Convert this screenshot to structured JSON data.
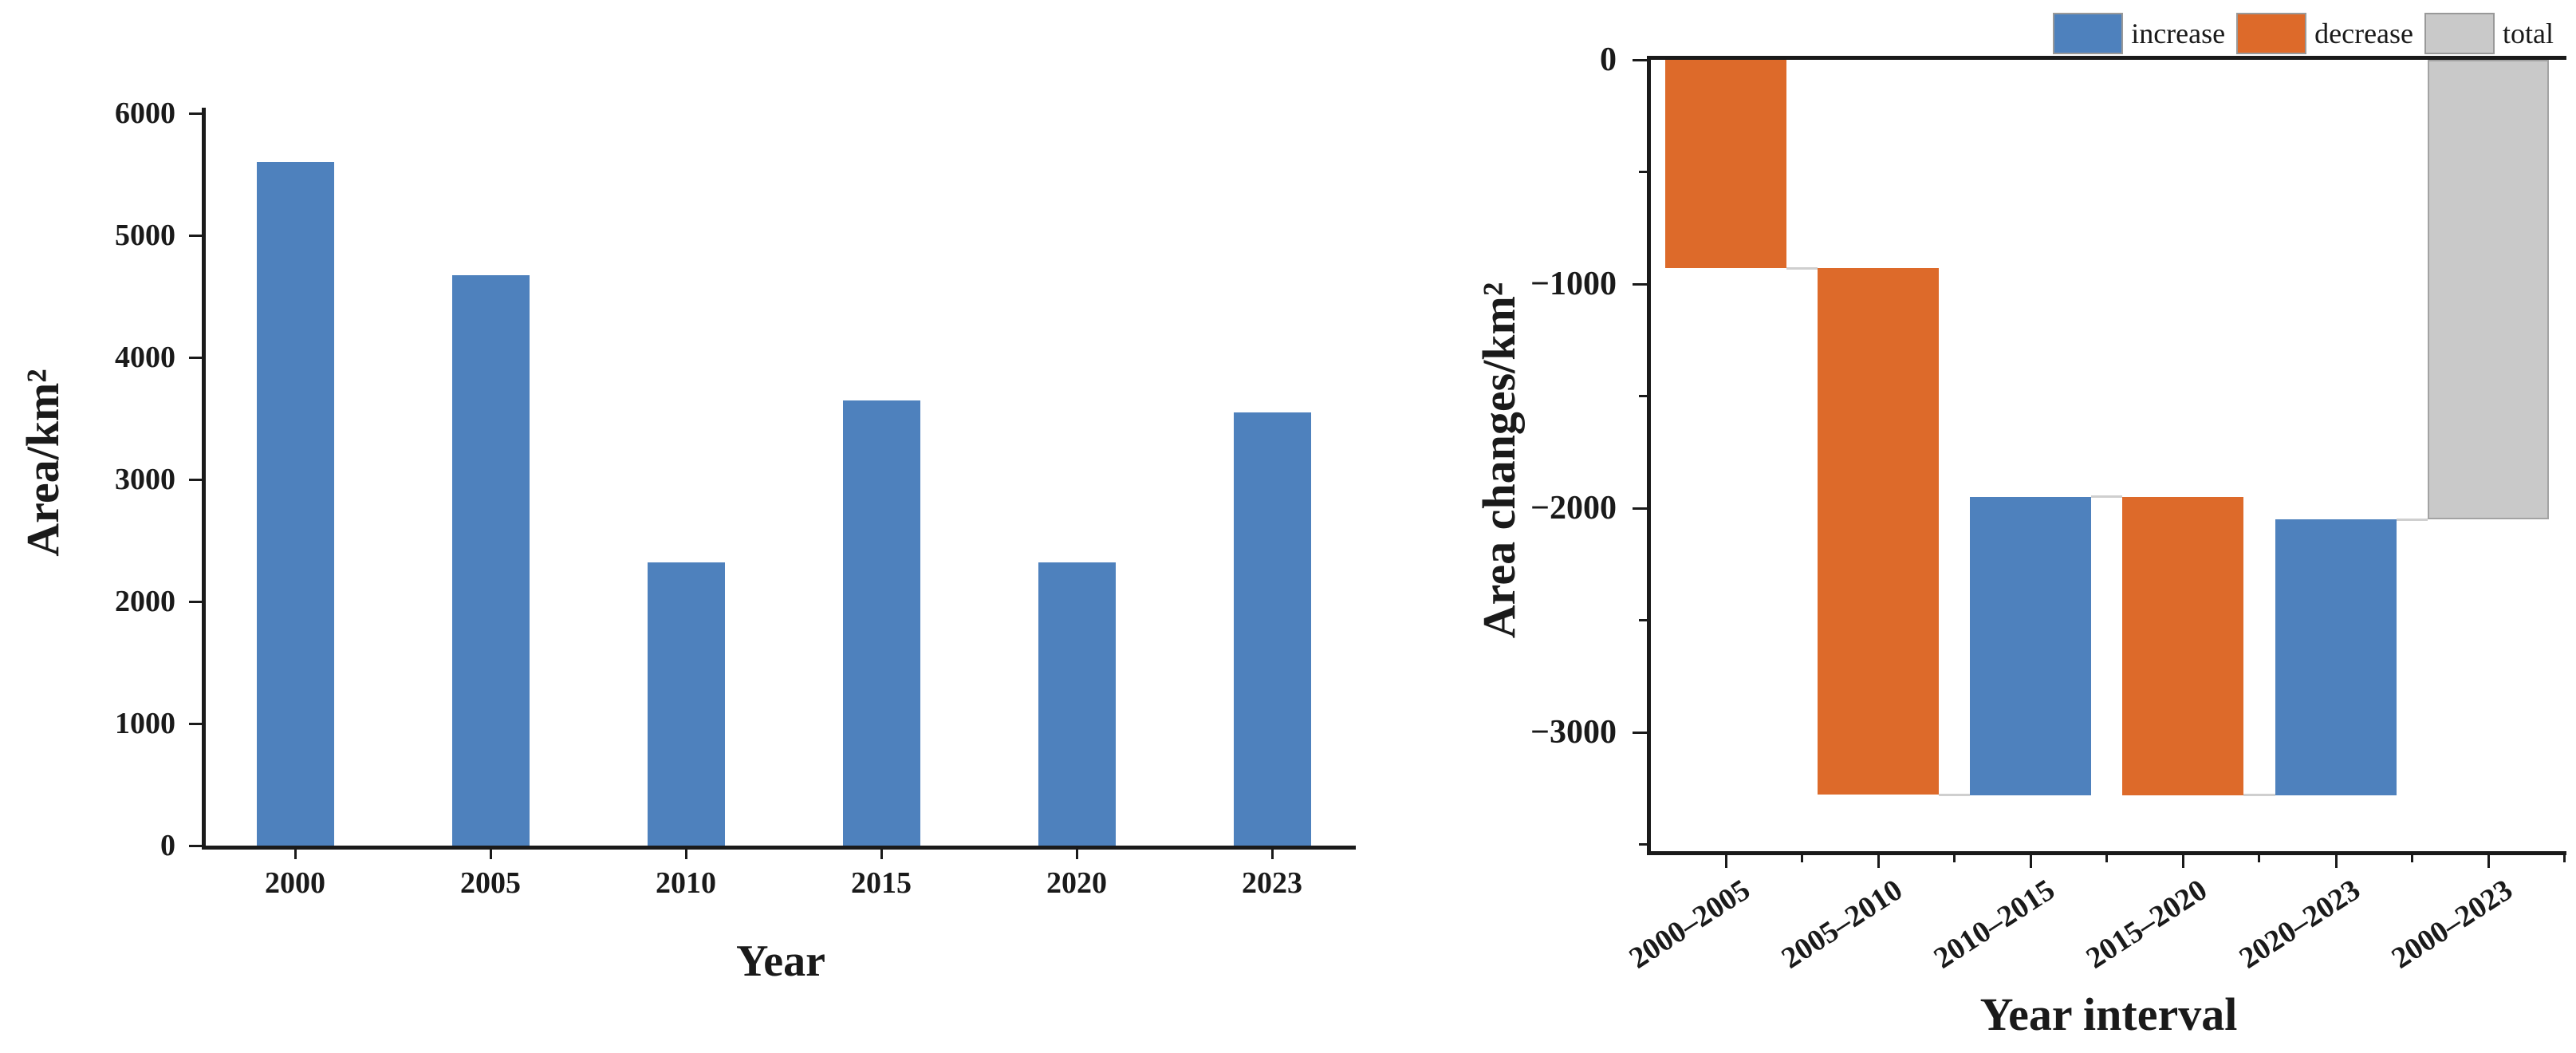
{
  "page": {
    "background": "#ffffff"
  },
  "chart_data": [
    {
      "id": "area-by-year",
      "type": "bar",
      "title": "",
      "xlabel": "Year",
      "ylabel": "Area/km²",
      "categories": [
        "2000",
        "2005",
        "2010",
        "2015",
        "2020",
        "2023"
      ],
      "values": [
        5600,
        4670,
        2320,
        3650,
        2320,
        3550
      ],
      "bar_color": "#4E81BD",
      "ylim": [
        0,
        6000
      ],
      "yticks": [
        {
          "value": 0,
          "label": "0"
        },
        {
          "value": 1000,
          "label": "1000"
        },
        {
          "value": 2000,
          "label": "2000"
        },
        {
          "value": 3000,
          "label": "3000"
        },
        {
          "value": 4000,
          "label": "4000"
        },
        {
          "value": 5000,
          "label": "5000"
        },
        {
          "value": 6000,
          "label": "6000"
        }
      ],
      "grid": false,
      "legend_position": "none"
    },
    {
      "id": "area-changes-waterfall",
      "type": "waterfall",
      "title": "",
      "xlabel": "Year interval",
      "ylabel": "Area changes/km²",
      "categories": [
        "2000–2005",
        "2005–2010",
        "2010–2015",
        "2015–2020",
        "2020–2023",
        "2000–2023"
      ],
      "roles": [
        "decrease",
        "decrease",
        "increase",
        "decrease",
        "increase",
        "total"
      ],
      "changes": [
        -930,
        -2350,
        1330,
        -1330,
        1230,
        -2050
      ],
      "bar_spans": [
        [
          0,
          -930
        ],
        [
          -930,
          -3280
        ],
        [
          -1950,
          -3280
        ],
        [
          -1950,
          -3280
        ],
        [
          -2050,
          -3280
        ],
        [
          0,
          -2050
        ]
      ],
      "cumulative_levels": [
        0,
        -930,
        -3280,
        -1950,
        -3280,
        -2050
      ],
      "ylim": [
        -3530,
        0
      ],
      "yticks": [
        {
          "value": 0,
          "label": "0"
        },
        {
          "value": -1000,
          "label": "−1000"
        },
        {
          "value": -2000,
          "label": "−2000"
        },
        {
          "value": -3000,
          "label": "−3000"
        }
      ],
      "yticks_minor": [
        -500,
        -1500,
        -2500,
        -3500
      ],
      "colors": {
        "increase": "#4E81BD",
        "decrease": "#DD6A2A",
        "total": "#C9C9C9",
        "total_border": "#A3A3A3"
      },
      "grid": false,
      "legend_position": "top-right",
      "legend": [
        {
          "label": "increase",
          "color": "#4E81BD"
        },
        {
          "label": "decrease",
          "color": "#DD6A2A"
        },
        {
          "label": "total",
          "color": "#C9C9C9"
        }
      ]
    }
  ]
}
